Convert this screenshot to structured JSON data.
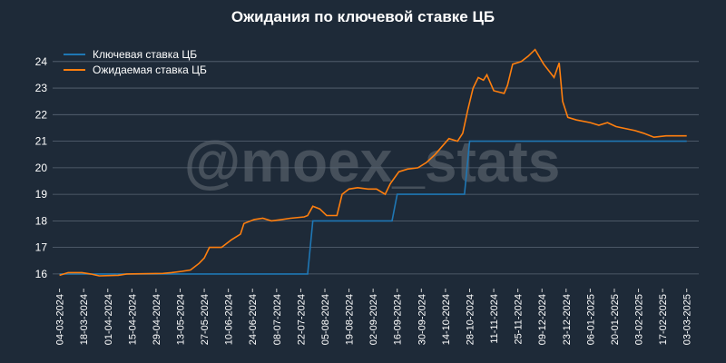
{
  "chart_data": {
    "type": "line",
    "title": "Ожидания по ключевой ставке ЦБ",
    "watermark": "@moex_stats",
    "legend": "upper left",
    "grid": true,
    "xlim": [
      "29-02-2024",
      "10-03-2025"
    ],
    "ylim": [
      15.45,
      24.95
    ],
    "yticks": [
      16,
      17,
      18,
      19,
      20,
      21,
      22,
      23,
      24
    ],
    "xticks": [
      "04-03-2024",
      "18-03-2024",
      "01-04-2024",
      "15-04-2024",
      "29-04-2024",
      "13-05-2024",
      "27-05-2024",
      "10-06-2024",
      "24-06-2024",
      "08-07-2024",
      "22-07-2024",
      "05-08-2024",
      "19-08-2024",
      "02-09-2024",
      "16-09-2024",
      "30-09-2024",
      "14-10-2024",
      "28-10-2024",
      "11-11-2024",
      "25-11-2024",
      "09-12-2024",
      "23-12-2024",
      "06-01-2025",
      "20-01-2025",
      "03-02-2025",
      "17-02-2025",
      "03-03-2025"
    ],
    "series": [
      {
        "name": "Ключевая ставка ЦБ",
        "color": "#1f77b4",
        "x": [
          "04-03-2024",
          "26-07-2024",
          "29-07-2024",
          "13-09-2024",
          "16-09-2024",
          "25-10-2024",
          "28-10-2024",
          "03-03-2025"
        ],
        "values": [
          16,
          16,
          18,
          18,
          19,
          19,
          21,
          21
        ]
      },
      {
        "name": "Ожидаемая ставка ЦБ",
        "color": "#ff7f0e",
        "x": [
          "04-03-2024",
          "09-03-2024",
          "17-03-2024",
          "22-03-2024",
          "27-03-2024",
          "07-04-2024",
          "12-04-2024",
          "03-05-2024",
          "08-05-2024",
          "14-05-2024",
          "19-05-2024",
          "24-05-2024",
          "27-05-2024",
          "30-05-2024",
          "06-06-2024",
          "12-06-2024",
          "17-06-2024",
          "19-06-2024",
          "25-06-2024",
          "30-06-2024",
          "05-07-2024",
          "11-07-2024",
          "16-07-2024",
          "24-07-2024",
          "26-07-2024",
          "29-07-2024",
          "02-08-2024",
          "06-08-2024",
          "12-08-2024",
          "15-08-2024",
          "19-08-2024",
          "24-08-2024",
          "30-08-2024",
          "04-09-2024",
          "09-09-2024",
          "12-09-2024",
          "17-09-2024",
          "22-09-2024",
          "28-09-2024",
          "03-10-2024",
          "08-10-2024",
          "16-10-2024",
          "21-10-2024",
          "24-10-2024",
          "27-10-2024",
          "30-10-2024",
          "02-11-2024",
          "05-11-2024",
          "07-11-2024",
          "11-11-2024",
          "17-11-2024",
          "19-11-2024",
          "22-11-2024",
          "27-11-2024",
          "01-12-2024",
          "05-12-2024",
          "10-12-2024",
          "16-12-2024",
          "19-12-2024",
          "21-12-2024",
          "24-12-2024",
          "29-12-2024",
          "06-01-2025",
          "11-01-2025",
          "16-01-2025",
          "21-01-2025",
          "01-02-2025",
          "06-02-2025",
          "12-02-2025",
          "19-02-2025",
          "03-03-2025"
        ],
        "values": [
          15.95,
          16.05,
          16.05,
          16.0,
          15.93,
          15.95,
          16.0,
          16.02,
          16.05,
          16.1,
          16.15,
          16.4,
          16.6,
          17.0,
          17.0,
          17.3,
          17.5,
          17.9,
          18.05,
          18.1,
          18.0,
          18.05,
          18.1,
          18.15,
          18.2,
          18.55,
          18.45,
          18.2,
          18.2,
          19.0,
          19.2,
          19.25,
          19.2,
          19.2,
          19.0,
          19.4,
          19.85,
          19.95,
          20.0,
          20.2,
          20.5,
          21.1,
          21.0,
          21.3,
          22.2,
          23.0,
          23.4,
          23.3,
          23.5,
          22.9,
          22.8,
          23.1,
          23.9,
          24.0,
          24.2,
          24.45,
          23.9,
          23.4,
          23.95,
          22.5,
          21.9,
          21.8,
          21.7,
          21.6,
          21.7,
          21.55,
          21.4,
          21.3,
          21.15,
          21.2,
          21.2
        ]
      }
    ]
  }
}
